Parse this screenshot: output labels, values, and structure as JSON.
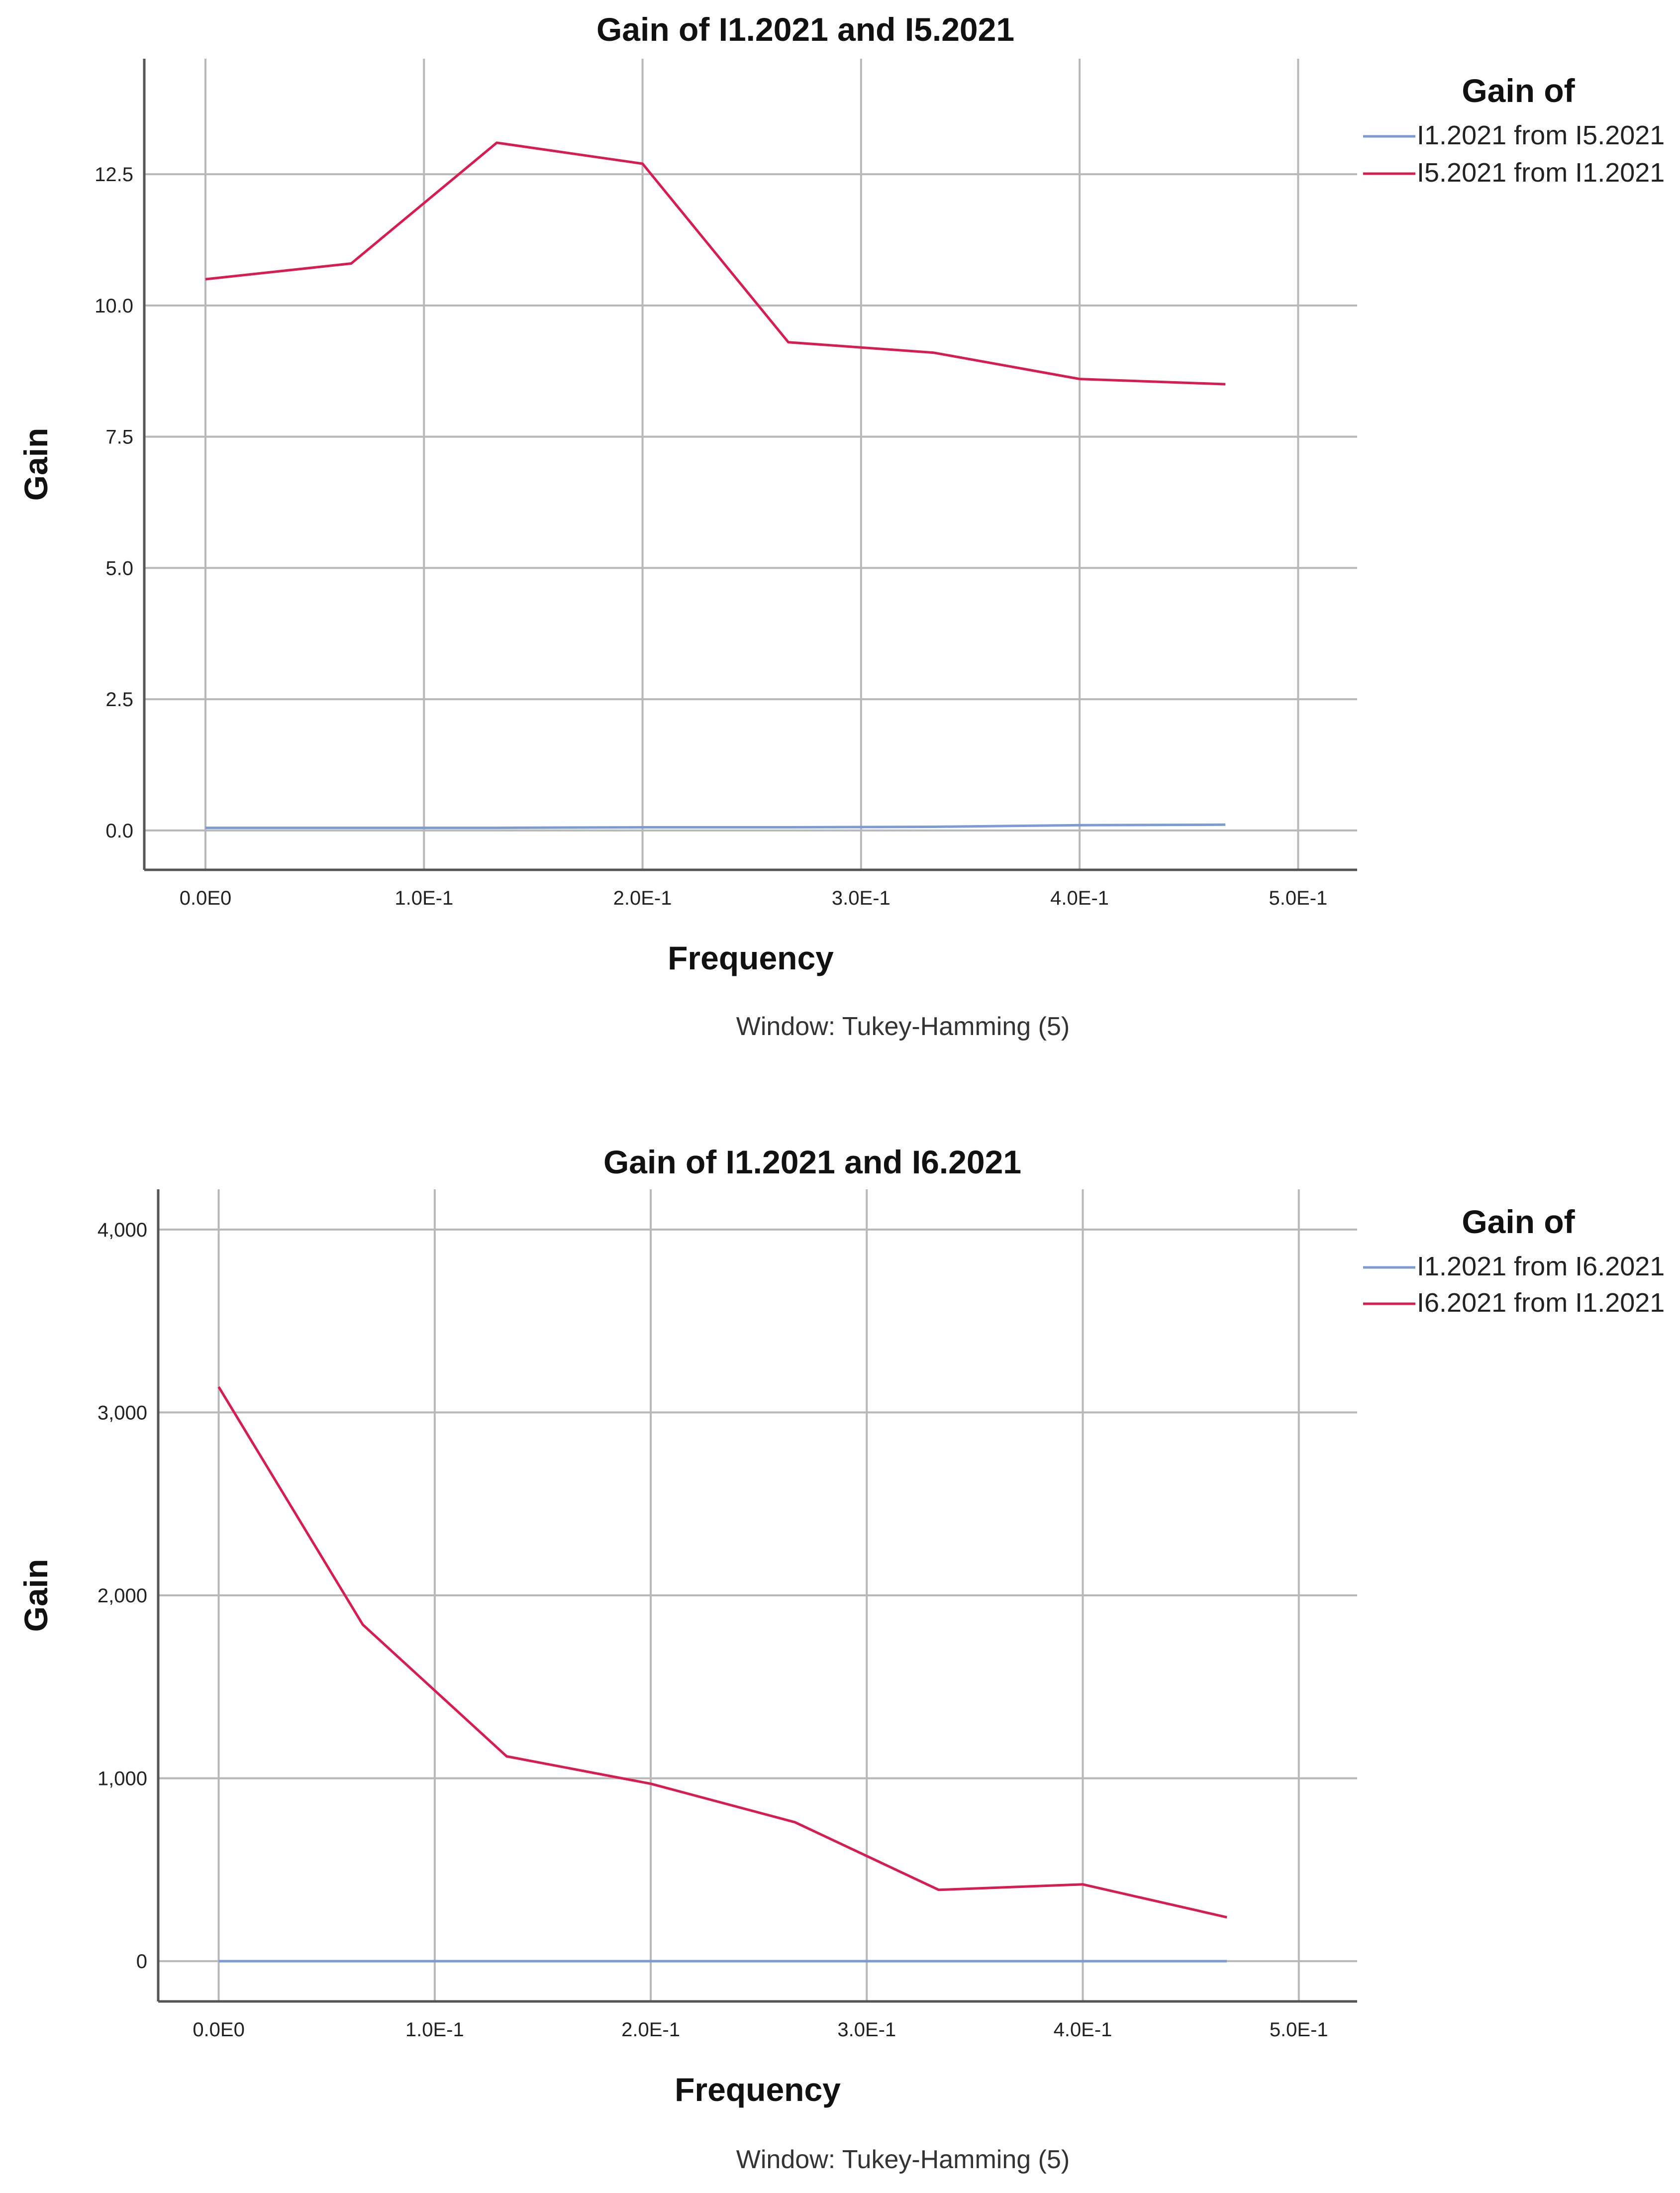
{
  "chart_data": [
    {
      "type": "line",
      "title": "Gain of I1.2021 and I5.2021",
      "xlabel": "Frequency",
      "ylabel": "Gain",
      "footer": "Window: Tukey-Hamming (5)",
      "legend_title": "Gain of",
      "legend_position": "right",
      "grid": true,
      "xlim": [
        -0.028,
        0.527
      ],
      "ylim": [
        -0.75,
        14.7
      ],
      "x_ticks": [
        0,
        0.1,
        0.2,
        0.3,
        0.4,
        0.5
      ],
      "x_tick_labels": [
        "0.0E0",
        "1.0E-1",
        "2.0E-1",
        "3.0E-1",
        "4.0E-1",
        "5.0E-1"
      ],
      "y_ticks": [
        0,
        2.5,
        5,
        7.5,
        10,
        12.5
      ],
      "y_tick_labels": [
        "0.0",
        "2.5",
        "5.0",
        "7.5",
        "10.0",
        "12.5"
      ],
      "series": [
        {
          "name": "I1.2021 from I5.2021",
          "color": "#7b9ad6",
          "x": [
            0,
            0.0667,
            0.1333,
            0.2,
            0.2667,
            0.3333,
            0.4,
            0.4667
          ],
          "values": [
            0.05,
            0.05,
            0.05,
            0.06,
            0.06,
            0.07,
            0.1,
            0.11
          ]
        },
        {
          "name": "I5.2021 from I1.2021",
          "color": "#d81b50",
          "x": [
            0,
            0.0667,
            0.1333,
            0.2,
            0.2667,
            0.3333,
            0.4,
            0.4667
          ],
          "values": [
            10.5,
            10.8,
            13.1,
            12.7,
            9.3,
            9.1,
            8.6,
            8.5
          ]
        }
      ]
    },
    {
      "type": "line",
      "title": "Gain of I1.2021 and I6.2021",
      "xlabel": "Frequency",
      "ylabel": "Gain",
      "footer": "Window: Tukey-Hamming (5)",
      "legend_title": "Gain of",
      "legend_position": "right",
      "grid": true,
      "xlim": [
        -0.028,
        0.527
      ],
      "ylim": [
        -220,
        4220
      ],
      "x_ticks": [
        0,
        0.1,
        0.2,
        0.3,
        0.4,
        0.5
      ],
      "x_tick_labels": [
        "0.0E0",
        "1.0E-1",
        "2.0E-1",
        "3.0E-1",
        "4.0E-1",
        "5.0E-1"
      ],
      "y_ticks": [
        0,
        1000,
        2000,
        3000,
        4000
      ],
      "y_tick_labels": [
        "0",
        "1,000",
        "2,000",
        "3,000",
        "4,000"
      ],
      "series": [
        {
          "name": "I1.2021 from I6.2021",
          "color": "#7b9ad6",
          "x": [
            0,
            0.0667,
            0.1333,
            0.2,
            0.2667,
            0.3333,
            0.4,
            0.4667
          ],
          "values": [
            0,
            0,
            0,
            0,
            0,
            0,
            0,
            0
          ]
        },
        {
          "name": "I6.2021 from I1.2021",
          "color": "#d81b50",
          "x": [
            0,
            0.0667,
            0.1333,
            0.2,
            0.2667,
            0.3333,
            0.4,
            0.4667
          ],
          "values": [
            3140,
            1840,
            1120,
            970,
            760,
            390,
            420,
            240
          ]
        }
      ]
    }
  ]
}
